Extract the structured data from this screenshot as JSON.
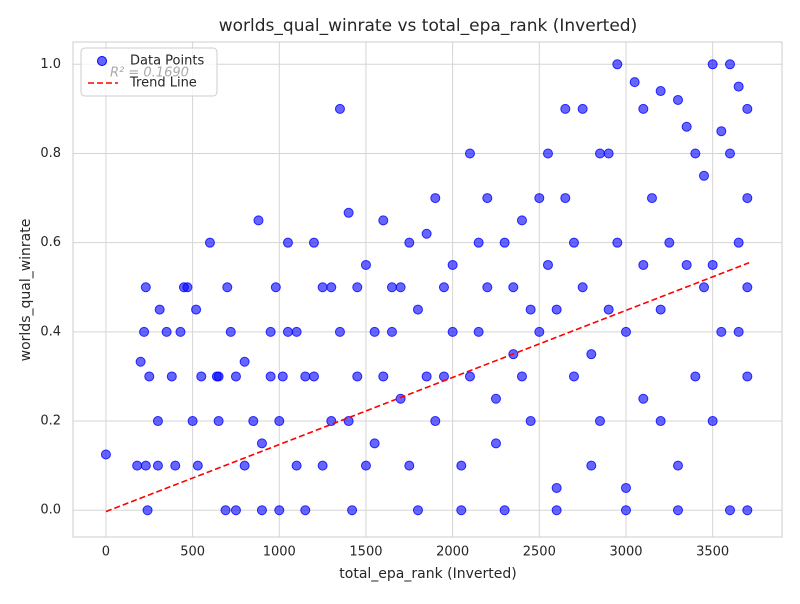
{
  "chart_data": {
    "type": "scatter",
    "title": "worlds_qual_winrate vs total_epa_rank (Inverted)",
    "x_label": "total_epa_rank (Inverted)",
    "y_label": "worlds_qual_winrate",
    "annotation": "R² = 0.1690",
    "xlim": [
      -190,
      3900
    ],
    "ylim": [
      -0.06,
      1.05
    ],
    "xticks": [
      0,
      500,
      1000,
      1500,
      2000,
      2500,
      3000,
      3500
    ],
    "yticks": [
      {
        "value": 0,
        "label": "0.0"
      },
      0.2,
      0.4,
      0.6,
      0.8,
      {
        "value": 1,
        "label": "1.0"
      }
    ],
    "grid": true,
    "legend": "upper left",
    "series": [
      {
        "name": "Data Points",
        "color": "#0000ff",
        "x": [
          0,
          240,
          180,
          230,
          300,
          400,
          200,
          230,
          220,
          250,
          300,
          310,
          350,
          380,
          430,
          450,
          470,
          500,
          520,
          530,
          600,
          640,
          650,
          700,
          690,
          720,
          750,
          800,
          880,
          900,
          950,
          980,
          1000,
          1020,
          1050,
          1100,
          1150,
          1200,
          1250,
          1300,
          1350,
          1400,
          1420,
          1450,
          1500,
          1550,
          1600,
          1650,
          1700,
          1750,
          1800,
          1850,
          1900,
          1950,
          2000,
          2050,
          2100,
          2150,
          2200,
          2250,
          2300,
          2350,
          2400,
          2450,
          2500,
          2550,
          2600,
          2650,
          2700,
          2750,
          2800,
          2850,
          2900,
          2950,
          3000,
          3050,
          3100,
          3150,
          3200,
          3250,
          3300,
          3350,
          3400,
          3450,
          3500,
          3550,
          3600,
          3650,
          3700,
          3700,
          3700,
          3700,
          3650,
          3600,
          3550,
          3500,
          3450,
          3400,
          3300,
          3200,
          3100,
          3000,
          2900,
          2800,
          2700,
          2600,
          2500,
          2400,
          2300,
          2200,
          2100,
          2000,
          1900,
          1800,
          1700,
          1600,
          1500,
          1400,
          1300,
          1200,
          1100,
          1000,
          900,
          800,
          3000,
          3300,
          3600,
          2600,
          3700,
          3650,
          3500,
          3350,
          3200,
          3100,
          2950,
          2850,
          2750,
          2650,
          2550,
          2450,
          2350,
          2250,
          2150,
          2050,
          1950,
          1850,
          1750,
          1650,
          1550,
          1450,
          1350,
          1250,
          1150,
          1050,
          950,
          850,
          750,
          650,
          550
        ],
        "values": [
          0.125,
          0,
          0.1,
          0.1,
          0.1,
          0.1,
          0.333,
          0.5,
          0.4,
          0.3,
          0.2,
          0.45,
          0.4,
          0.3,
          0.4,
          0.5,
          0.5,
          0.2,
          0.45,
          0.1,
          0.6,
          0.3,
          0.2,
          0.5,
          0,
          0.4,
          0.3,
          0.333,
          0.65,
          0.15,
          0.4,
          0.5,
          0,
          0.3,
          0.6,
          0.4,
          0,
          0.6,
          0.5,
          0.2,
          0.9,
          0.667,
          0,
          0.3,
          0.55,
          0.4,
          0.65,
          0.5,
          0.25,
          0.6,
          0.45,
          0.62,
          0.7,
          0.3,
          0.55,
          0,
          0.8,
          0.4,
          0.7,
          0.15,
          0.6,
          0.5,
          0.65,
          0.2,
          0.7,
          0.8,
          0.05,
          0.9,
          0.6,
          0.9,
          0.35,
          0.8,
          0.45,
          1,
          0.05,
          0.96,
          0.9,
          0.7,
          0.94,
          0.6,
          0.92,
          0.86,
          0.3,
          0.75,
          1,
          0.85,
          1,
          0.95,
          0.9,
          0,
          0.3,
          0.5,
          0.6,
          0.8,
          0.4,
          0.2,
          0.5,
          0.8,
          0.1,
          0.45,
          0.25,
          0.4,
          0.8,
          0.1,
          0.3,
          0.45,
          0.4,
          0.3,
          0,
          0.5,
          0.3,
          0.4,
          0.2,
          0,
          0.5,
          0.3,
          0.1,
          0.2,
          0.5,
          0.3,
          0.1,
          0.2,
          0,
          0.1,
          0,
          0,
          0,
          0,
          0.7,
          0.4,
          0.55,
          0.55,
          0.2,
          0.55,
          0.6,
          0.2,
          0.5,
          0.7,
          0.55,
          0.45,
          0.35,
          0.25,
          0.6,
          0.1,
          0.5,
          0.3,
          0.1,
          0.4,
          0.15,
          0.5,
          0.4,
          0.1,
          0.3,
          0.4,
          0.3,
          0.2,
          0,
          0.3,
          0.3
        ]
      },
      {
        "name": "Trend Line",
        "color": "#ff0000",
        "x": [
          0,
          3710
        ],
        "values": [
          -0.003,
          0.555
        ]
      }
    ]
  }
}
